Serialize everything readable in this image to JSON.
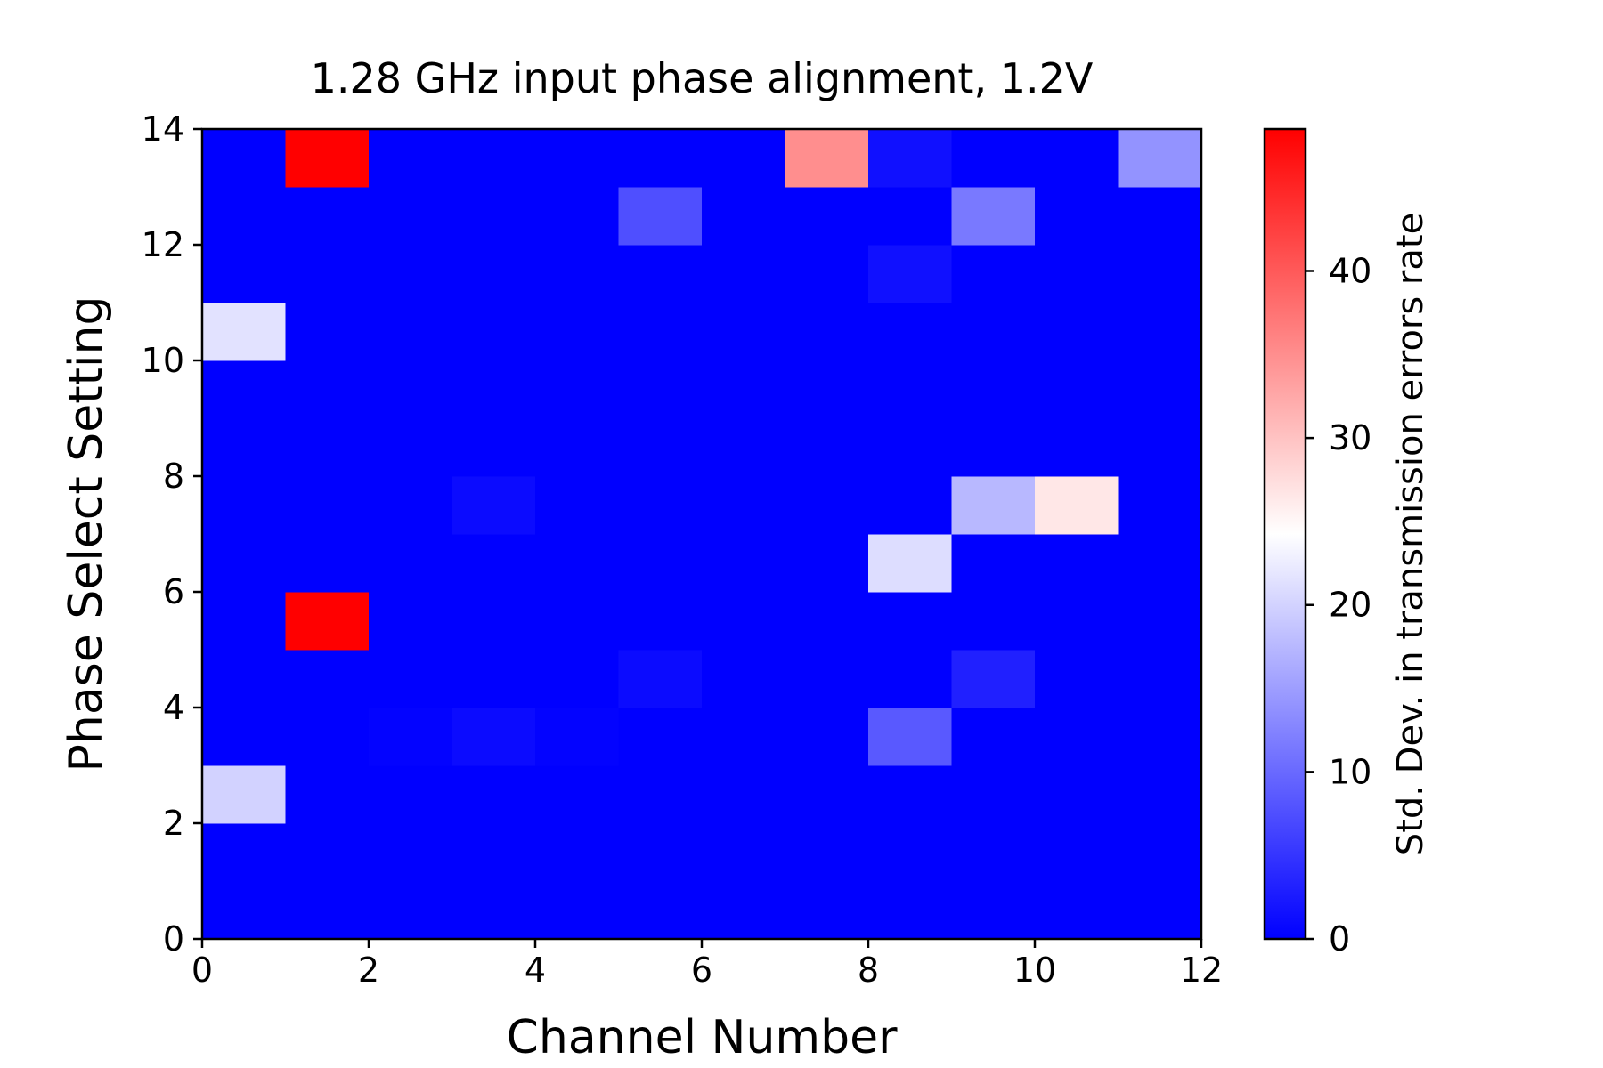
{
  "chart_data": {
    "type": "heatmap",
    "title": "1.28 GHz input phase alignment, 1.2V",
    "xlabel": "Channel Number",
    "ylabel": "Phase Select Setting",
    "colorbar_label": "Std. Dev. in transmission errors rate",
    "colormap": "bwr",
    "x_edges": [
      0,
      1,
      2,
      3,
      4,
      5,
      6,
      7,
      8,
      9,
      10,
      11,
      12
    ],
    "y_edges": [
      0,
      1,
      2,
      3,
      4,
      5,
      6,
      7,
      8,
      9,
      10,
      11,
      12,
      13,
      14
    ],
    "xlim": [
      0,
      12
    ],
    "ylim": [
      0,
      14
    ],
    "x_ticks": [
      0,
      2,
      4,
      6,
      8,
      10,
      12
    ],
    "y_ticks": [
      0,
      2,
      4,
      6,
      8,
      10,
      12,
      14
    ],
    "colorbar_ticks": [
      0,
      10,
      20,
      30,
      40
    ],
    "clim": [
      0,
      48.5
    ],
    "values": [
      [
        0,
        0,
        0,
        0,
        0,
        0,
        0,
        0,
        0,
        0,
        0,
        0
      ],
      [
        0,
        0,
        0,
        0,
        0,
        0,
        0,
        0,
        0,
        0,
        0,
        0
      ],
      [
        20,
        0,
        0,
        0,
        0,
        0,
        0,
        0,
        0,
        0,
        0,
        0
      ],
      [
        0,
        0,
        0.3,
        1,
        0.3,
        0,
        0,
        0,
        8.5,
        0,
        0,
        0
      ],
      [
        0,
        0,
        0,
        0,
        0,
        1,
        0,
        0,
        0,
        3,
        0,
        0
      ],
      [
        0,
        48.5,
        0,
        0,
        0,
        0,
        0,
        0,
        0,
        0,
        0,
        0
      ],
      [
        0,
        0,
        0,
        0,
        0,
        0,
        0,
        0,
        21,
        0,
        0,
        0
      ],
      [
        0,
        0,
        0,
        1,
        0,
        0,
        0,
        0,
        0,
        17.5,
        26.5,
        0
      ],
      [
        0,
        0,
        0,
        0,
        0,
        0,
        0,
        0,
        0,
        0,
        0,
        0
      ],
      [
        0,
        0,
        0,
        0,
        0,
        0,
        0,
        0,
        0,
        0,
        0,
        0
      ],
      [
        21.5,
        0,
        0,
        0,
        0,
        0,
        0,
        0,
        0,
        0,
        0,
        0
      ],
      [
        0,
        0,
        0,
        0,
        0,
        0,
        0,
        0,
        1.5,
        0,
        0,
        0
      ],
      [
        0,
        0,
        0,
        0,
        0,
        7.5,
        0,
        0,
        0,
        11.5,
        0,
        0
      ],
      [
        0,
        48.5,
        0,
        0,
        0,
        0,
        0,
        35,
        1.5,
        0,
        0,
        14
      ]
    ]
  }
}
